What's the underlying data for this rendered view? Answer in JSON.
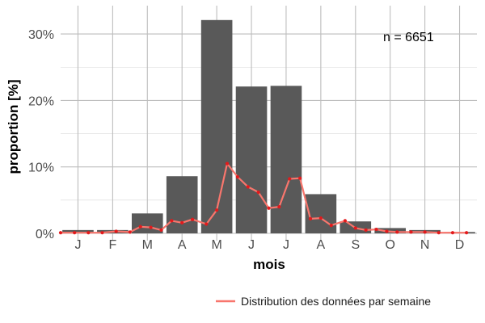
{
  "chart_data": {
    "type": "bar",
    "xlabel": "mois",
    "ylabel": "proportion [%]",
    "categories": [
      "J",
      "F",
      "M",
      "A",
      "M",
      "J",
      "J",
      "A",
      "S",
      "O",
      "N",
      "D"
    ],
    "values": [
      0.5,
      0.5,
      3.0,
      8.6,
      32.1,
      22.1,
      22.2,
      5.9,
      1.8,
      0.8,
      0.5,
      0.2
    ],
    "ylim": [
      0,
      34
    ],
    "yticks": [
      0,
      10,
      20,
      30
    ],
    "ytick_labels": [
      "0%",
      "10%",
      "20%",
      "30%"
    ],
    "bar_color": "#595959",
    "grid": true,
    "annotation": "n = 6651",
    "series": [
      {
        "name": "Distribution des données par semaine",
        "type": "line",
        "color": "#f8766d",
        "point_color": "#e31a1c",
        "x": [
          0.5,
          0.9,
          1.3,
          1.7,
          2.1,
          2.5,
          2.8,
          3.1,
          3.4,
          3.7,
          4.0,
          4.3,
          4.7,
          5.0,
          5.3,
          5.6,
          5.9,
          6.2,
          6.5,
          6.8,
          7.1,
          7.4,
          7.7,
          8.0,
          8.3,
          8.7,
          9.0,
          9.3,
          9.6,
          9.9,
          10.2,
          10.6,
          11.0,
          11.4,
          11.8,
          12.2
        ],
        "values": [
          0.1,
          0.1,
          0.1,
          0.1,
          0.3,
          0.2,
          1.0,
          0.9,
          0.5,
          1.9,
          1.6,
          2.1,
          1.4,
          3.5,
          10.5,
          8.5,
          7.0,
          6.2,
          3.8,
          4.0,
          8.2,
          8.3,
          2.2,
          2.3,
          1.2,
          1.9,
          0.8,
          0.5,
          0.6,
          0.3,
          0.2,
          0.2,
          0.2,
          0.1,
          0.1,
          0.1
        ]
      }
    ],
    "legend_position": "bottom-right"
  }
}
